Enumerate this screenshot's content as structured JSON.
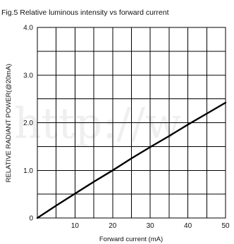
{
  "chart_data": {
    "type": "line",
    "title": "Fig.5  Relative luminous intensity vs forward current",
    "xlabel": "Forward current (mA)",
    "ylabel": "RELATIVE RADIANT POWER(@20mA)",
    "xlim": [
      0,
      50
    ],
    "ylim": [
      0,
      4.0
    ],
    "x_ticks": [
      10,
      20,
      30,
      40,
      50
    ],
    "x_tick_labels": [
      "10",
      "20",
      "30",
      "40",
      "50"
    ],
    "y_ticks": [
      0,
      1.0,
      2.0,
      3.0,
      4.0
    ],
    "y_tick_labels": [
      "0",
      "1.0",
      "2.0",
      "3.0",
      "4.0"
    ],
    "x_grid_count": 10,
    "y_grid_count": 8,
    "grid": true,
    "series": [
      {
        "x": [
          0,
          5,
          10,
          15,
          20,
          25,
          30,
          35,
          40,
          45,
          50
        ],
        "y": [
          0,
          0.26,
          0.51,
          0.76,
          1.0,
          1.25,
          1.49,
          1.72,
          1.96,
          2.19,
          2.42
        ],
        "color": "#000000"
      }
    ]
  },
  "watermark": "http://w"
}
